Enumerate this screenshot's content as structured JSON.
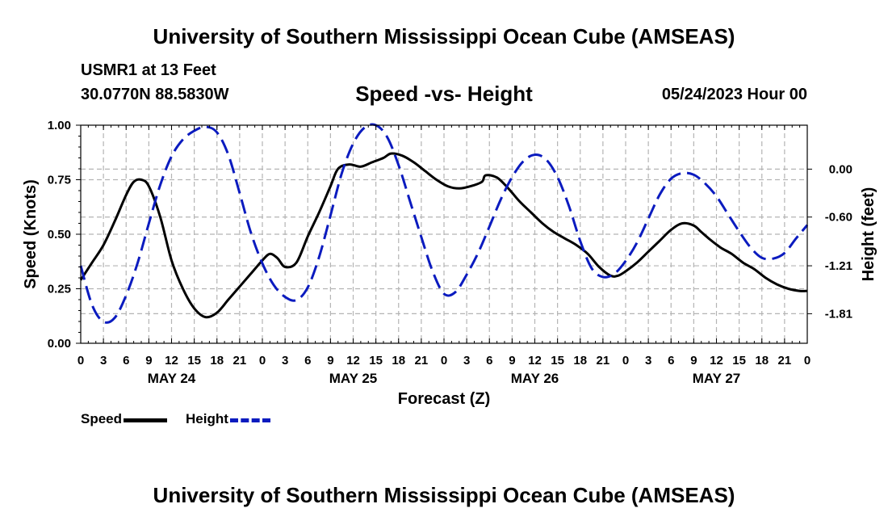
{
  "header": {
    "top_title": "University of Southern Mississippi Ocean Cube (AMSEAS)",
    "station": "USMR1 at 13 Feet",
    "coordinates": "30.0770N  88.5830W",
    "chart_title": "Speed -vs- Height",
    "datetime": "05/24/2023 Hour 00",
    "bottom_title": "University of Southern Mississippi Ocean Cube (AMSEAS)"
  },
  "legend": {
    "speed_label": "Speed",
    "height_label": "Height"
  },
  "colors": {
    "speed": "#000000",
    "height": "#0b1bbf",
    "grid": "#b4b4b4"
  },
  "chart_data": {
    "type": "line",
    "title": "Speed -vs- Height",
    "xlabel": "Forecast (Z)",
    "ylabel": "Speed (Knots)",
    "y2label": "Height (feet)",
    "xlim": [
      0,
      96
    ],
    "ylim": [
      0,
      1
    ],
    "y2lim": [
      -2.18,
      0.55
    ],
    "x_ticks": [
      0,
      3,
      6,
      9,
      12,
      15,
      18,
      21,
      24,
      27,
      30,
      33,
      36,
      39,
      42,
      45,
      48,
      51,
      54,
      57,
      60,
      63,
      66,
      69,
      72,
      75,
      78,
      81,
      84,
      87,
      90,
      93,
      96
    ],
    "x_tick_labels": [
      "0",
      "3",
      "6",
      "9",
      "12",
      "15",
      "18",
      "21",
      "0",
      "3",
      "6",
      "9",
      "12",
      "15",
      "18",
      "21",
      "0",
      "3",
      "6",
      "9",
      "12",
      "15",
      "18",
      "21",
      "0",
      "3",
      "6",
      "9",
      "12",
      "15",
      "18",
      "21",
      "0"
    ],
    "date_labels": [
      {
        "x": 12,
        "label": "MAY 24"
      },
      {
        "x": 36,
        "label": "MAY 25"
      },
      {
        "x": 60,
        "label": "MAY 26"
      },
      {
        "x": 84,
        "label": "MAY 27"
      }
    ],
    "y_ticks": [
      0.0,
      0.25,
      0.5,
      0.75,
      1.0
    ],
    "y_tick_labels": [
      "0.00",
      "0.25",
      "0.50",
      "0.75",
      "1.00"
    ],
    "y2_ticks": [
      0.0,
      -0.6,
      -1.21,
      -1.81
    ],
    "y2_tick_labels": [
      "0.00",
      "-0.60",
      "-1.21",
      "-1.81"
    ],
    "series": [
      {
        "name": "Speed",
        "axis": "left",
        "style": "solid",
        "x": [
          0,
          1.5,
          3,
          4.5,
          6,
          7,
          8,
          9,
          10.5,
          12,
          13.5,
          15,
          16.5,
          18,
          19.5,
          21,
          22.5,
          24,
          25,
          26,
          27,
          28.5,
          30,
          31.5,
          33,
          34,
          35.5,
          37,
          38.5,
          40,
          41,
          42.5,
          44,
          45.5,
          47,
          48.5,
          50,
          51.5,
          53,
          53.5,
          55,
          56.5,
          58,
          59.5,
          61,
          62.5,
          64,
          65.5,
          67,
          68.5,
          70,
          71,
          72,
          73.5,
          75,
          76.5,
          78,
          79.5,
          81,
          82,
          83,
          84.5,
          86,
          87.5,
          89,
          90.5,
          92,
          93.5,
          95,
          96
        ],
        "values": [
          0.29,
          0.37,
          0.45,
          0.56,
          0.68,
          0.74,
          0.75,
          0.72,
          0.58,
          0.38,
          0.25,
          0.16,
          0.12,
          0.14,
          0.2,
          0.26,
          0.32,
          0.38,
          0.41,
          0.39,
          0.35,
          0.37,
          0.49,
          0.6,
          0.72,
          0.8,
          0.82,
          0.81,
          0.83,
          0.85,
          0.87,
          0.86,
          0.83,
          0.79,
          0.75,
          0.72,
          0.71,
          0.72,
          0.74,
          0.77,
          0.76,
          0.71,
          0.65,
          0.6,
          0.55,
          0.51,
          0.48,
          0.45,
          0.41,
          0.35,
          0.31,
          0.31,
          0.33,
          0.37,
          0.42,
          0.47,
          0.52,
          0.55,
          0.54,
          0.51,
          0.48,
          0.44,
          0.41,
          0.37,
          0.34,
          0.3,
          0.27,
          0.25,
          0.24,
          0.24
        ]
      },
      {
        "name": "Height",
        "axis": "right",
        "style": "dashed",
        "x": [
          0,
          1.5,
          3,
          4.5,
          6,
          7.5,
          9,
          10.5,
          12,
          13.5,
          15,
          16.5,
          18,
          19.5,
          21,
          22.5,
          24,
          25.5,
          27,
          28.5,
          30,
          31.5,
          33,
          34.5,
          36,
          37.5,
          39,
          40.5,
          42,
          43.5,
          45,
          46.5,
          48,
          49.5,
          51,
          52.5,
          54,
          55.5,
          57,
          58.5,
          60,
          61.5,
          63,
          64.5,
          66,
          67.5,
          69,
          70.5,
          72,
          73.5,
          75,
          76.5,
          78,
          79.5,
          81,
          82.5,
          84,
          85.5,
          87,
          88.5,
          90,
          91.5,
          93,
          94.5,
          96
        ],
        "values": [
          -1.21,
          -1.7,
          -1.91,
          -1.86,
          -1.58,
          -1.18,
          -0.68,
          -0.2,
          0.16,
          0.37,
          0.48,
          0.53,
          0.46,
          0.18,
          -0.3,
          -0.8,
          -1.18,
          -1.45,
          -1.6,
          -1.64,
          -1.48,
          -1.1,
          -0.58,
          -0.05,
          0.32,
          0.52,
          0.55,
          0.4,
          0.05,
          -0.4,
          -0.85,
          -1.28,
          -1.56,
          -1.54,
          -1.32,
          -1.05,
          -0.72,
          -0.38,
          -0.1,
          0.1,
          0.18,
          0.12,
          -0.1,
          -0.46,
          -0.9,
          -1.24,
          -1.35,
          -1.31,
          -1.15,
          -0.92,
          -0.62,
          -0.32,
          -0.12,
          -0.05,
          -0.07,
          -0.18,
          -0.34,
          -0.56,
          -0.78,
          -0.98,
          -1.11,
          -1.12,
          -1.05,
          -0.87,
          -0.7
        ]
      }
    ]
  }
}
